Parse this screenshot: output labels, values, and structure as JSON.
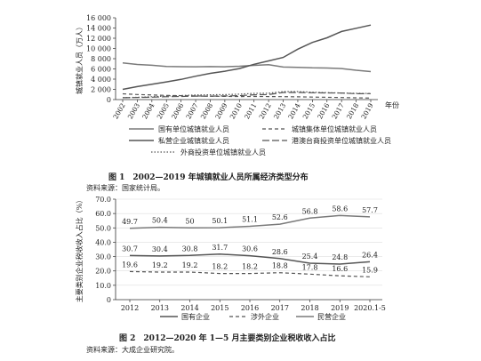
{
  "chart_data": [
    {
      "type": "line",
      "title": "图 1　2002—2019 年城镇就业人员所属经济类型分布",
      "caption_no": "图 1",
      "caption_text": "2002—2019 年城镇就业人员所属经济类型分布",
      "source": "资料来源：国家统计局。",
      "ylabel": "城镇就业人员（万人）",
      "xlabel": "年份",
      "ylim": [
        0,
        16000
      ],
      "yticks": [
        "0",
        "2 000",
        "4 000",
        "6 000",
        "8 000",
        "10 000",
        "12 000",
        "14 000",
        "16 000"
      ],
      "x": [
        "2002",
        "2003",
        "2004",
        "2005",
        "2006",
        "2007",
        "2008",
        "2009",
        "2010",
        "2011",
        "2012",
        "2013",
        "2014",
        "2015",
        "2016",
        "2017",
        "2018",
        "2019"
      ],
      "series": [
        {
          "name": "国有单位城镇就业人员",
          "style": "solid-gray",
          "values": [
            7163,
            6876,
            6710,
            6488,
            6430,
            6424,
            6447,
            6420,
            6516,
            6704,
            6839,
            6365,
            6312,
            6208,
            6170,
            6064,
            5740,
            5473
          ]
        },
        {
          "name": "城镇集体单位城镇就业人员",
          "style": "dash",
          "values": [
            1122,
            1000,
            897,
            810,
            764,
            718,
            662,
            618,
            597,
            603,
            589,
            566,
            537,
            481,
            453,
            406,
            347,
            296
          ]
        },
        {
          "name": "私营企业城镇就业人员",
          "style": "solid-dark",
          "values": [
            1999,
            2545,
            2994,
            3458,
            3954,
            4581,
            5124,
            5544,
            6071,
            6912,
            7557,
            8242,
            9857,
            11180,
            12083,
            13327,
            13952,
            14567
          ]
        },
        {
          "name": "港澳台商投资单位城镇就业人员",
          "style": "long-dash",
          "values": [
            367,
            409,
            470,
            557,
            611,
            680,
            679,
            721,
            770,
            932,
            969,
            1397,
            1393,
            1344,
            1305,
            1290,
            1153,
            1157
          ]
        },
        {
          "name": "外商投资单位城镇就业人员",
          "style": "dot",
          "values": [
            391,
            454,
            563,
            688,
            796,
            903,
            943,
            978,
            1053,
            1217,
            1246,
            1566,
            1562,
            1446,
            1361,
            1291,
            1212,
            1203
          ]
        }
      ]
    },
    {
      "type": "line",
      "title": "图 2　2012—2020 年 1—5 月主要类别企业税收收入占比",
      "caption_no": "图 2",
      "caption_text": "2012—2020 年 1—5 月主要类别企业税收收入占比",
      "source": "资料来源：大成企业研究院。",
      "ylabel": "主要类别企业税收收入占比（%）",
      "ylim": [
        0,
        70
      ],
      "yticks": [
        "0",
        "10.0",
        "20.0",
        "30.0",
        "40.0",
        "50.0",
        "60.0",
        "70.0"
      ],
      "x": [
        "2012",
        "2013",
        "2014",
        "2015",
        "2016",
        "2017",
        "2018",
        "2019",
        "2020.1-5"
      ],
      "series": [
        {
          "name": "国有企业",
          "style": "solid-dark",
          "values": [
            30.7,
            30.4,
            30.8,
            31.7,
            30.6,
            28.6,
            25.4,
            24.8,
            26.4
          ],
          "labels": [
            "30.7",
            "30.4",
            "30.8",
            "31.7",
            "30.6",
            "28.6",
            "25.4",
            "24.8",
            "26.4"
          ]
        },
        {
          "name": "涉外企业",
          "style": "dash",
          "values": [
            19.6,
            19.2,
            19.2,
            18.2,
            18.2,
            18.8,
            17.8,
            16.6,
            15.9
          ],
          "labels": [
            "19.6",
            "19.2",
            "19.2",
            "18.2",
            "18.2",
            "18.8",
            "17.8",
            "16.6",
            "15.9"
          ]
        },
        {
          "name": "民营企业",
          "style": "solid-gray",
          "values": [
            49.7,
            50.4,
            50,
            50.1,
            51.1,
            52.6,
            56.8,
            58.6,
            57.7
          ],
          "labels": [
            "49.7",
            "50.4",
            "50",
            "50.1",
            "51.1",
            "52.6",
            "56.8",
            "58.6",
            "57.7"
          ]
        }
      ]
    }
  ],
  "colors": {
    "axis": "#333333",
    "dark": "#555555",
    "gray": "#7a7a7a",
    "grid": "#dddddd",
    "text": "#222222"
  }
}
